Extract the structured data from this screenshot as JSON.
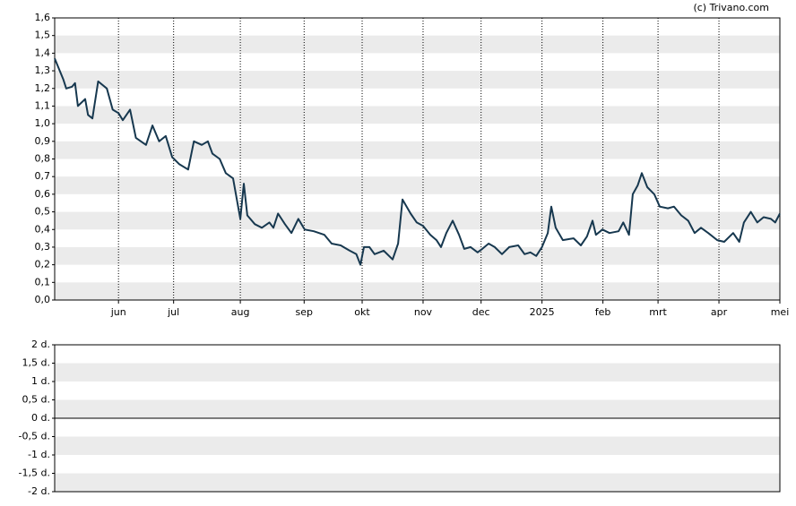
{
  "chart_data": [
    {
      "type": "line",
      "credit": "(c) Trivano.com",
      "grid": true,
      "line_width": 2,
      "xlim": [
        0,
        250
      ],
      "ylim": [
        0,
        1.6
      ],
      "xticks": [
        {
          "value": 22,
          "label": "jun"
        },
        {
          "value": 41,
          "label": "jul"
        },
        {
          "value": 64,
          "label": "aug"
        },
        {
          "value": 86,
          "label": "sep"
        },
        {
          "value": 106,
          "label": "okt"
        },
        {
          "value": 127,
          "label": "nov"
        },
        {
          "value": 147,
          "label": "dec"
        },
        {
          "value": 168,
          "label": "2025"
        },
        {
          "value": 189,
          "label": "feb"
        },
        {
          "value": 208,
          "label": "mrt"
        },
        {
          "value": 229,
          "label": "apr"
        },
        {
          "value": 250,
          "label": "mei"
        }
      ],
      "yticks": [
        {
          "value": 0,
          "label": "0,0"
        },
        {
          "value": 0.1,
          "label": "0,1"
        },
        {
          "value": 0.2,
          "label": "0,2"
        },
        {
          "value": 0.3,
          "label": "0,3"
        },
        {
          "value": 0.4,
          "label": "0,4"
        },
        {
          "value": 0.5,
          "label": "0,5"
        },
        {
          "value": 0.6,
          "label": "0,6"
        },
        {
          "value": 0.7,
          "label": "0,7"
        },
        {
          "value": 0.8,
          "label": "0,8"
        },
        {
          "value": 0.9,
          "label": "0,9"
        },
        {
          "value": 1.0,
          "label": "1,0"
        },
        {
          "value": 1.1,
          "label": "1,1"
        },
        {
          "value": 1.2,
          "label": "1,2"
        },
        {
          "value": 1.3,
          "label": "1,3"
        },
        {
          "value": 1.4,
          "label": "1,4"
        },
        {
          "value": 1.5,
          "label": "1,5"
        },
        {
          "value": 1.6,
          "label": "1,6"
        }
      ],
      "x": [
        0,
        3,
        4,
        6,
        7,
        8,
        10.5,
        11.5,
        13,
        15,
        18,
        20,
        22,
        23.5,
        26,
        28,
        30.6,
        31.5,
        33.7,
        36,
        38.3,
        40.5,
        43,
        46,
        48,
        50.7,
        52.8,
        54.4,
        56.9,
        59,
        61.5,
        64,
        65.2,
        66.4,
        69,
        71.4,
        74,
        75.4,
        77,
        79.4,
        81.6,
        84,
        86.2,
        89.3,
        93,
        95.5,
        98.6,
        101.7,
        104,
        105.4,
        106.6,
        108.5,
        110.3,
        113.4,
        116.5,
        118.4,
        119.9,
        122.7,
        124.8,
        127,
        129.5,
        131.6,
        133.2,
        135,
        137.2,
        139.4,
        141.2,
        143.4,
        145.8,
        147.4,
        149.6,
        151.7,
        154.2,
        156.7,
        159.8,
        162,
        164,
        166,
        168,
        170,
        171.2,
        172.7,
        175.2,
        178.9,
        181.4,
        183.5,
        185.4,
        186.6,
        188.8,
        191.3,
        194.4,
        196,
        198,
        199.3,
        201,
        202.4,
        204.3,
        206.7,
        208.6,
        211.4,
        213.5,
        216,
        218.4,
        220.6,
        222.8,
        225.3,
        228.4,
        230.8,
        233.9,
        236,
        237.6,
        240,
        242.2,
        244.4,
        246.9,
        248.4,
        250
      ],
      "series": [
        {
          "color": "#17384f",
          "values": [
            1.37,
            1.25,
            1.2,
            1.21,
            1.23,
            1.1,
            1.14,
            1.05,
            1.03,
            1.24,
            1.2,
            1.08,
            1.06,
            1.02,
            1.08,
            0.92,
            0.89,
            0.88,
            0.99,
            0.9,
            0.93,
            0.81,
            0.77,
            0.74,
            0.9,
            0.88,
            0.9,
            0.83,
            0.8,
            0.72,
            0.69,
            0.46,
            0.66,
            0.48,
            0.43,
            0.41,
            0.44,
            0.41,
            0.49,
            0.43,
            0.38,
            0.46,
            0.4,
            0.39,
            0.37,
            0.32,
            0.31,
            0.28,
            0.26,
            0.2,
            0.3,
            0.3,
            0.26,
            0.28,
            0.23,
            0.32,
            0.57,
            0.49,
            0.44,
            0.42,
            0.37,
            0.34,
            0.3,
            0.38,
            0.45,
            0.37,
            0.29,
            0.3,
            0.27,
            0.29,
            0.32,
            0.3,
            0.26,
            0.3,
            0.31,
            0.26,
            0.27,
            0.25,
            0.3,
            0.38,
            0.53,
            0.41,
            0.34,
            0.35,
            0.31,
            0.36,
            0.45,
            0.37,
            0.4,
            0.38,
            0.39,
            0.44,
            0.37,
            0.6,
            0.65,
            0.72,
            0.64,
            0.6,
            0.53,
            0.52,
            0.53,
            0.48,
            0.45,
            0.38,
            0.41,
            0.38,
            0.34,
            0.33,
            0.38,
            0.33,
            0.44,
            0.5,
            0.44,
            0.47,
            0.46,
            0.44,
            0.49
          ]
        }
      ]
    },
    {
      "type": "bar",
      "grid": true,
      "ylim": [
        -2,
        2
      ],
      "yticks": [
        {
          "value": -2,
          "label": "-2 d."
        },
        {
          "value": -1.5,
          "label": "-1,5 d."
        },
        {
          "value": -1,
          "label": "-1 d."
        },
        {
          "value": -0.5,
          "label": "-0,5 d."
        },
        {
          "value": 0,
          "label": "0 d."
        },
        {
          "value": 0.5,
          "label": "0,5 d."
        },
        {
          "value": 1,
          "label": "1 d."
        },
        {
          "value": 1.5,
          "label": "1,5 d."
        },
        {
          "value": 2,
          "label": "2 d."
        }
      ]
    }
  ]
}
